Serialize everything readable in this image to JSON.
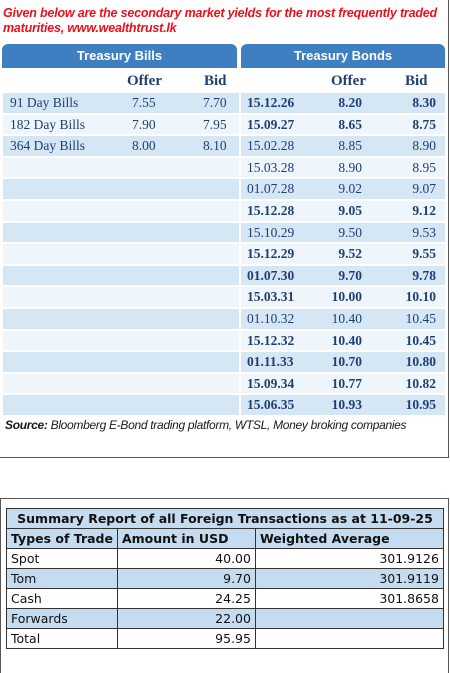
{
  "intro": "Given below are the secondary market yields for the most frequently traded maturities, www.wealthtrust.lk",
  "headers": {
    "bills": "Treasury Bills",
    "bonds": "Treasury Bonds"
  },
  "subheaders": {
    "offer": "Offer",
    "bid": "Bid"
  },
  "rows": [
    {
      "bill": "91 Day Bills",
      "bill_offer": "7.55",
      "bill_bid": "7.70",
      "date": "15.12.26",
      "offer": "8.20",
      "bid": "8.30"
    },
    {
      "bill": "182 Day Bills",
      "bill_offer": "7.90",
      "bill_bid": "7.95",
      "date": "15.09.27",
      "offer": "8.65",
      "bid": "8.75"
    },
    {
      "bill": "364 Day Bills",
      "bill_offer": "8.00",
      "bill_bid": "8.10",
      "date": "15.02.28",
      "offer": "8.85",
      "bid": "8.90"
    },
    {
      "bill": "",
      "bill_offer": "",
      "bill_bid": "",
      "date": "15.03.28",
      "offer": "8.90",
      "bid": "8.95"
    },
    {
      "bill": "",
      "bill_offer": "",
      "bill_bid": "",
      "date": "01.07.28",
      "offer": "9.02",
      "bid": "9.07"
    },
    {
      "bill": "",
      "bill_offer": "",
      "bill_bid": "",
      "date": "15.12.28",
      "offer": "9.05",
      "bid": "9.12"
    },
    {
      "bill": "",
      "bill_offer": "",
      "bill_bid": "",
      "date": "15.10.29",
      "offer": "9.50",
      "bid": "9.53"
    },
    {
      "bill": "",
      "bill_offer": "",
      "bill_bid": "",
      "date": "15.12.29",
      "offer": "9.52",
      "bid": "9.55"
    },
    {
      "bill": "",
      "bill_offer": "",
      "bill_bid": "",
      "date": "01.07.30",
      "offer": "9.70",
      "bid": "9.78"
    },
    {
      "bill": "",
      "bill_offer": "",
      "bill_bid": "",
      "date": "15.03.31",
      "offer": "10.00",
      "bid": "10.10"
    },
    {
      "bill": "",
      "bill_offer": "",
      "bill_bid": "",
      "date": "01.10.32",
      "offer": "10.40",
      "bid": "10.45"
    },
    {
      "bill": "",
      "bill_offer": "",
      "bill_bid": "",
      "date": "15.12.32",
      "offer": "10.40",
      "bid": "10.45"
    },
    {
      "bill": "",
      "bill_offer": "",
      "bill_bid": "",
      "date": "01.11.33",
      "offer": "10.70",
      "bid": "10.80"
    },
    {
      "bill": "",
      "bill_offer": "",
      "bill_bid": "",
      "date": "15.09.34",
      "offer": "10.77",
      "bid": "10.82"
    },
    {
      "bill": "",
      "bill_offer": "",
      "bill_bid": "",
      "date": "15.06.35",
      "offer": "10.93",
      "bid": "10.95"
    }
  ],
  "source": {
    "label": "Source:",
    "text": " Bloomberg E-Bond trading platform, WTSL, Money broking companies"
  },
  "fx": {
    "title": "Summary Report of all Foreign Transactions as at 11-09-25",
    "headers": [
      "Types of Trade",
      "Amount in USD",
      "Weighted Average"
    ],
    "rows": [
      {
        "type": "Spot",
        "amount": "40.00",
        "avg": "301.9126"
      },
      {
        "type": "Tom",
        "amount": "9.70",
        "avg": "301.9119"
      },
      {
        "type": "Cash",
        "amount": "24.25",
        "avg": "301.8658"
      },
      {
        "type": "Forwards",
        "amount": "22.00",
        "avg": ""
      },
      {
        "type": "Total",
        "amount": "95.95",
        "avg": ""
      }
    ]
  }
}
